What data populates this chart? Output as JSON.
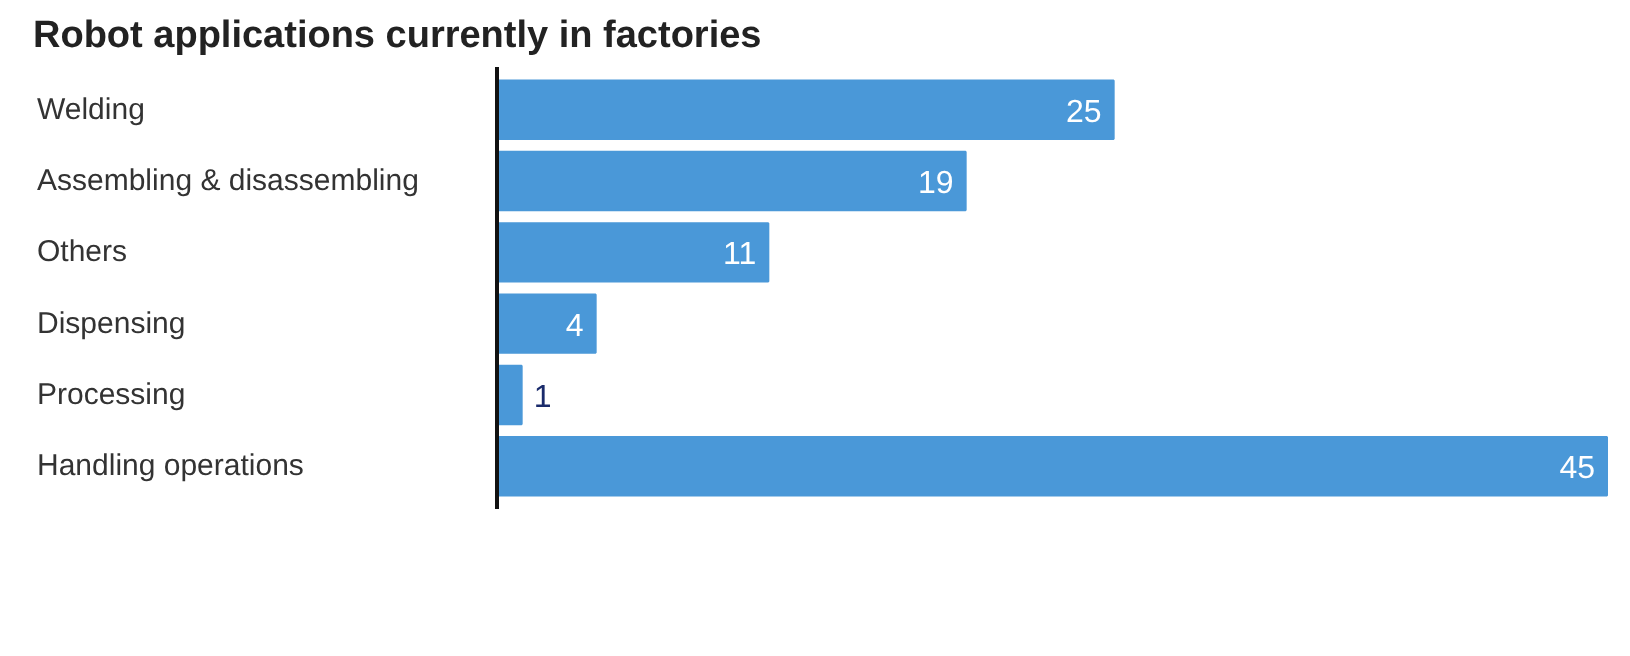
{
  "chart_data": {
    "type": "bar",
    "orientation": "horizontal",
    "title": "Robot applications currently in factories",
    "categories": [
      "Welding",
      "Assembling & disassembling",
      "Others",
      "Dispensing",
      "Processing",
      "Handling operations"
    ],
    "values": [
      25,
      19,
      11,
      4,
      1,
      45
    ],
    "color": "#4a98d8",
    "data_labels": true,
    "grid": false
  }
}
